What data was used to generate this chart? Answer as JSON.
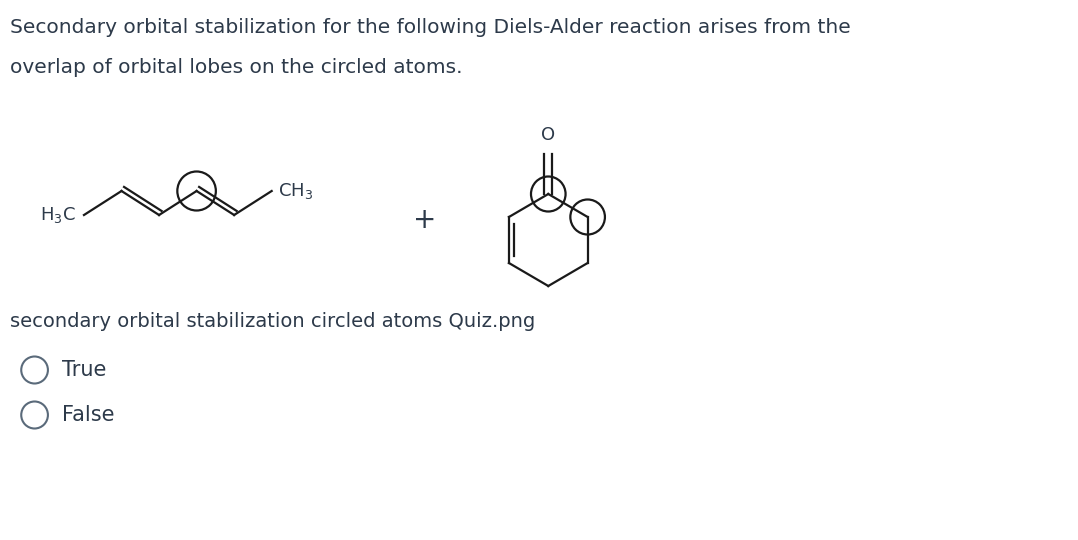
{
  "title_line1": "Secondary orbital stabilization for the following Diels-Alder reaction arises from the",
  "title_line2": "overlap of orbital lobes on the circled atoms.",
  "subtitle": "secondary orbital stabilization circled atoms Quiz.png",
  "option1": "True",
  "option2": "False",
  "bg_color": "#ffffff",
  "text_color": "#2d3a4a",
  "bond_color": "#1a1a1a",
  "title_fontsize": 14.5,
  "subtitle_fontsize": 14,
  "option_fontsize": 15
}
